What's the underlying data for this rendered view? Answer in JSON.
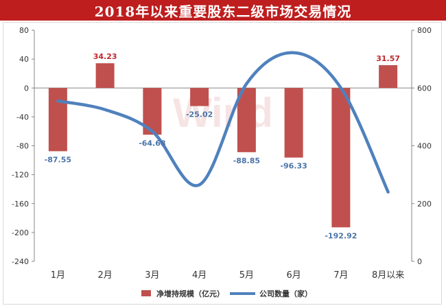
{
  "title": "2018年以来重要股东二级市场交易情况",
  "watermark": "Wind",
  "colors": {
    "bar": "#c0504d",
    "line": "#4f81bd",
    "title_bg": "#be1e1e"
  },
  "chart_data": {
    "type": "bar+line",
    "categories": [
      "1月",
      "2月",
      "3月",
      "4月",
      "5月",
      "6月",
      "7月",
      "8月以来"
    ],
    "series": [
      {
        "name": "净增持规模（亿元）",
        "type": "bar",
        "axis": "left",
        "values": [
          -87.55,
          34.23,
          -64.68,
          -25.02,
          -88.85,
          -96.33,
          -192.92,
          31.57
        ]
      },
      {
        "name": "公司数量（家）",
        "type": "line",
        "axis": "right",
        "values": [
          555,
          525,
          450,
          265,
          615,
          722,
          600,
          240
        ]
      }
    ],
    "data_labels": [
      "-87.55",
      "34.23",
      "-64.68",
      "-25.02",
      "-88.85",
      "-96.33",
      "-192.92",
      "31.57"
    ],
    "y_left": {
      "min": -240,
      "max": 80,
      "step": 40,
      "ticks": [
        "80",
        "40",
        "0",
        "-40",
        "-80",
        "-120",
        "-160",
        "-200",
        "-240"
      ]
    },
    "y_right": {
      "min": 0,
      "max": 800,
      "step": 200,
      "ticks": [
        "800",
        "600",
        "400",
        "200",
        "0"
      ]
    },
    "legend": [
      "净增持规模（亿元）",
      "公司数量（家）"
    ],
    "legend_position": "bottom",
    "grid": false
  }
}
